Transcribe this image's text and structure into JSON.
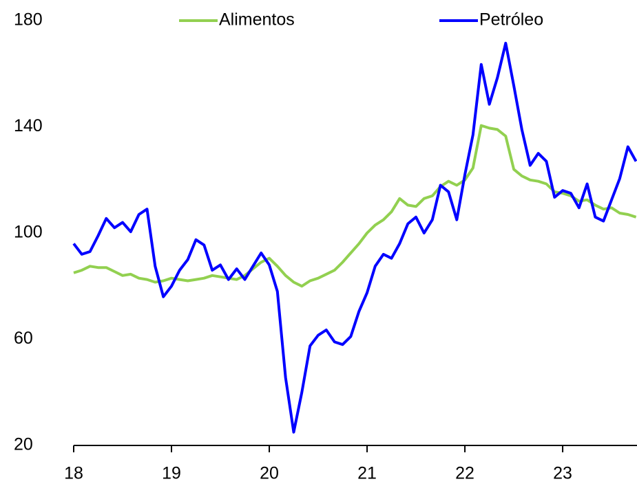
{
  "chart_data": {
    "type": "line",
    "x": [
      18,
      18.083,
      18.167,
      18.25,
      18.333,
      18.417,
      18.5,
      18.583,
      18.667,
      18.75,
      18.833,
      18.917,
      19,
      19.083,
      19.167,
      19.25,
      19.333,
      19.417,
      19.5,
      19.583,
      19.667,
      19.75,
      19.833,
      19.917,
      20,
      20.083,
      20.167,
      20.25,
      20.333,
      20.417,
      20.5,
      20.583,
      20.667,
      20.75,
      20.833,
      20.917,
      21,
      21.083,
      21.167,
      21.25,
      21.333,
      21.417,
      21.5,
      21.583,
      21.667,
      21.75,
      21.833,
      21.917,
      22,
      22.083,
      22.167,
      22.25,
      22.333,
      22.417,
      22.5,
      22.583,
      22.667,
      22.75,
      22.833,
      22.917,
      23,
      23.083,
      23.167,
      23.25,
      23.333,
      23.417,
      23.5,
      23.583,
      23.667,
      23.75
    ],
    "series": [
      {
        "name": "Alimentos",
        "color": "#92d050",
        "values": [
          85,
          86,
          87.5,
          87,
          87,
          85.5,
          84,
          84.5,
          83,
          82.5,
          81.5,
          82,
          83,
          82.5,
          82,
          82.5,
          83,
          84,
          83.5,
          83,
          82.5,
          84,
          86.5,
          89,
          90.5,
          87.5,
          84,
          81.5,
          80,
          82,
          83,
          84.5,
          86,
          89,
          92.5,
          96,
          100,
          103,
          105,
          108,
          113,
          110.5,
          110,
          113,
          114,
          117.5,
          119.5,
          118,
          120,
          124.5,
          140.5,
          139.5,
          139,
          136.5,
          124,
          121.5,
          120,
          119.5,
          118.5,
          115.5,
          115,
          114,
          112,
          112.5,
          110.5,
          109,
          109.5,
          107.5,
          107,
          106
        ]
      },
      {
        "name": "Petróleo",
        "color": "#0000ff",
        "values": [
          96,
          92,
          93,
          99,
          105.5,
          102,
          104,
          100.5,
          107,
          109,
          87.5,
          76,
          80,
          86,
          90,
          97.5,
          95.5,
          86,
          88,
          82.5,
          86.5,
          82.5,
          87.5,
          92.5,
          88,
          78,
          45.5,
          25,
          40,
          57.5,
          61.5,
          63.5,
          59,
          58,
          61,
          70.5,
          77.5,
          87.5,
          92,
          90.5,
          96,
          103.5,
          106,
          100,
          105,
          118,
          115.5,
          105,
          122,
          137,
          163.5,
          148.5,
          158.5,
          171.5,
          155.5,
          139,
          125.5,
          130,
          127,
          113.5,
          116,
          115,
          109.5,
          118.5,
          106,
          104.5,
          112.5,
          120.5,
          132.5,
          127
        ]
      }
    ],
    "xlim": [
      18,
      23.76
    ],
    "xticks": [
      18,
      19,
      20,
      21,
      22,
      23
    ],
    "ylim": [
      20,
      180
    ],
    "yticks": [
      20,
      60,
      100,
      140,
      180
    ],
    "legend": "top"
  }
}
